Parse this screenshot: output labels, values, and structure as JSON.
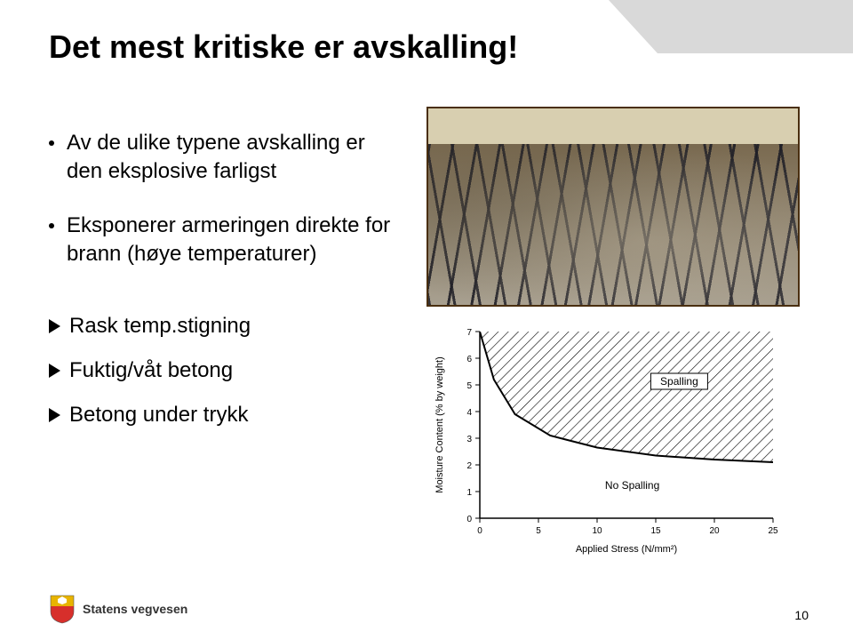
{
  "title": "Det mest kritiske er avskalling!",
  "bullets": [
    "Av de ulike typene avskalling er den eksplosive farligst",
    "Eksponerer armeringen direkte for brann (høye temperaturer)"
  ],
  "arrows": [
    "Rask temp.stigning",
    "Fuktig/våt betong",
    "Betong under trykk"
  ],
  "chart": {
    "type": "line-region",
    "x_label": "Applied Stress (N/mm²)",
    "y_label": "Moisture Content (% by weight)",
    "xlim": [
      0,
      25
    ],
    "ylim": [
      0,
      7
    ],
    "xticks": [
      0,
      5,
      10,
      15,
      20,
      25
    ],
    "yticks": [
      0,
      1,
      2,
      3,
      4,
      5,
      6,
      7
    ],
    "region_upper_label": "Spalling",
    "region_lower_label": "No Spalling",
    "boundary_curve": [
      {
        "x": 0,
        "y": 7
      },
      {
        "x": 1.2,
        "y": 5.2
      },
      {
        "x": 3,
        "y": 3.9
      },
      {
        "x": 6,
        "y": 3.1
      },
      {
        "x": 10,
        "y": 2.65
      },
      {
        "x": 15,
        "y": 2.35
      },
      {
        "x": 20,
        "y": 2.2
      },
      {
        "x": 25,
        "y": 2.1
      }
    ],
    "line_color": "#000000",
    "hatch_spacing": 8,
    "background_color": "#ffffff",
    "axis_fontsize": 10,
    "label_fontsize": 11
  },
  "footer": {
    "org": "Statens vegvesen",
    "logo_colors": {
      "top": "#e8b400",
      "bottom": "#d72f2b",
      "crown": "#ffffff"
    }
  },
  "page_number": "10",
  "colors": {
    "decor": "#d9d9d9",
    "text": "#000000",
    "bg": "#ffffff"
  }
}
